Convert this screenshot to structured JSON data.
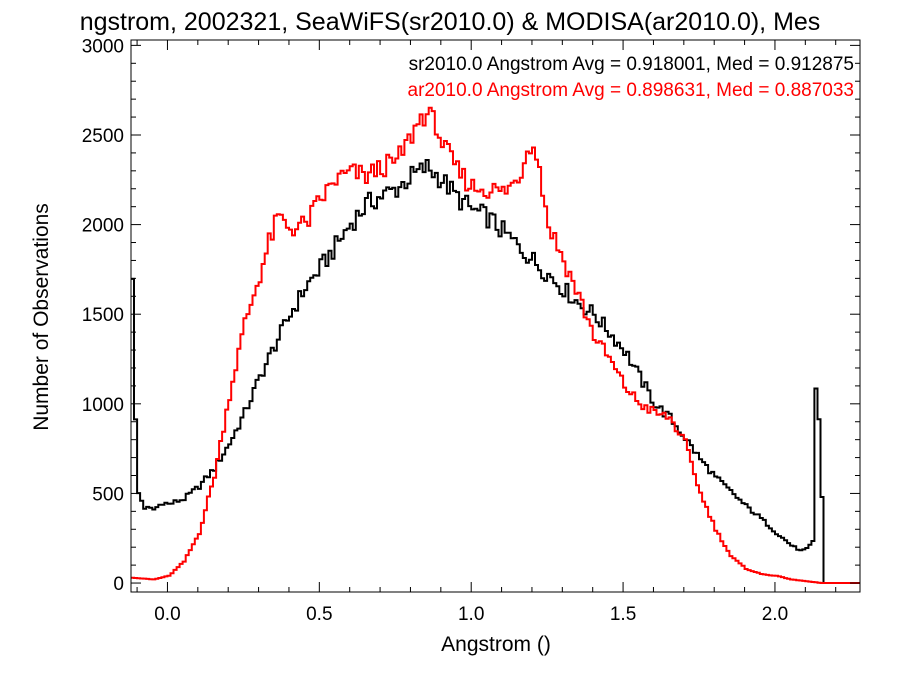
{
  "chart_data": {
    "type": "line",
    "title": "ngstrom, 2002321, SeaWiFS(sr2010.0) & MODISA(ar2010.0), Mes",
    "xlabel": "Angstrom ()",
    "ylabel": "Number of Observations",
    "xlim": [
      -0.12,
      2.28
    ],
    "ylim": [
      -50,
      3030
    ],
    "grid": false,
    "x_ticks": [
      0.0,
      0.5,
      1.0,
      1.5,
      2.0
    ],
    "x_tick_labels": [
      "0.0",
      "0.5",
      "1.0",
      "1.5",
      "2.0"
    ],
    "y_ticks": [
      0,
      500,
      1000,
      1500,
      2000,
      2500,
      3000
    ],
    "y_tick_labels": [
      "0",
      "500",
      "1000",
      "1500",
      "2000",
      "2500",
      "3000"
    ],
    "annotations": [
      {
        "text": "sr2010.0 Angstrom Avg = 0.918001, Med = 0.912875",
        "color": "#000000"
      },
      {
        "text": "ar2010.0 Angstrom Avg = 0.898631, Med = 0.887033",
        "color": "#ff0000"
      }
    ],
    "series": [
      {
        "color": "#000000",
        "x": [
          -0.12,
          -0.11,
          -0.1,
          -0.08,
          -0.05,
          -0.02,
          0.0,
          0.05,
          0.1,
          0.15,
          0.2,
          0.25,
          0.3,
          0.35,
          0.4,
          0.45,
          0.5,
          0.55,
          0.6,
          0.65,
          0.7,
          0.75,
          0.8,
          0.85,
          0.9,
          0.95,
          1.0,
          1.05,
          1.1,
          1.15,
          1.2,
          1.25,
          1.3,
          1.35,
          1.4,
          1.45,
          1.5,
          1.55,
          1.6,
          1.65,
          1.7,
          1.75,
          1.8,
          1.85,
          1.9,
          1.95,
          2.0,
          2.05,
          2.08,
          2.1,
          2.12,
          2.13,
          2.14,
          2.15,
          2.16,
          2.28
        ],
        "y": [
          1730,
          900,
          500,
          420,
          410,
          450,
          440,
          470,
          540,
          640,
          780,
          950,
          1150,
          1330,
          1500,
          1650,
          1760,
          1880,
          2010,
          2110,
          2160,
          2200,
          2270,
          2320,
          2250,
          2150,
          2080,
          2040,
          1960,
          1880,
          1800,
          1720,
          1640,
          1560,
          1500,
          1400,
          1300,
          1150,
          1000,
          920,
          810,
          690,
          590,
          510,
          430,
          360,
          280,
          210,
          180,
          190,
          230,
          1080,
          920,
          480,
          0,
          0
        ]
      },
      {
        "color": "#ff0000",
        "x": [
          -0.12,
          -0.05,
          0.0,
          0.05,
          0.1,
          0.15,
          0.2,
          0.25,
          0.3,
          0.33,
          0.36,
          0.4,
          0.45,
          0.5,
          0.55,
          0.6,
          0.65,
          0.7,
          0.75,
          0.8,
          0.83,
          0.85,
          0.88,
          0.9,
          0.95,
          1.0,
          1.05,
          1.1,
          1.15,
          1.18,
          1.2,
          1.22,
          1.25,
          1.3,
          1.35,
          1.4,
          1.45,
          1.5,
          1.55,
          1.6,
          1.65,
          1.7,
          1.75,
          1.8,
          1.85,
          1.9,
          1.95,
          2.0,
          2.05,
          2.1,
          2.15,
          2.28
        ],
        "y": [
          30,
          20,
          40,
          120,
          280,
          600,
          1050,
          1450,
          1720,
          1900,
          2040,
          1980,
          2000,
          2140,
          2250,
          2290,
          2270,
          2320,
          2350,
          2500,
          2600,
          2620,
          2560,
          2450,
          2300,
          2210,
          2200,
          2180,
          2250,
          2420,
          2480,
          2300,
          2000,
          1800,
          1600,
          1380,
          1250,
          1100,
          1000,
          950,
          920,
          780,
          500,
          300,
          150,
          80,
          50,
          40,
          20,
          10,
          0,
          0
        ]
      }
    ]
  }
}
